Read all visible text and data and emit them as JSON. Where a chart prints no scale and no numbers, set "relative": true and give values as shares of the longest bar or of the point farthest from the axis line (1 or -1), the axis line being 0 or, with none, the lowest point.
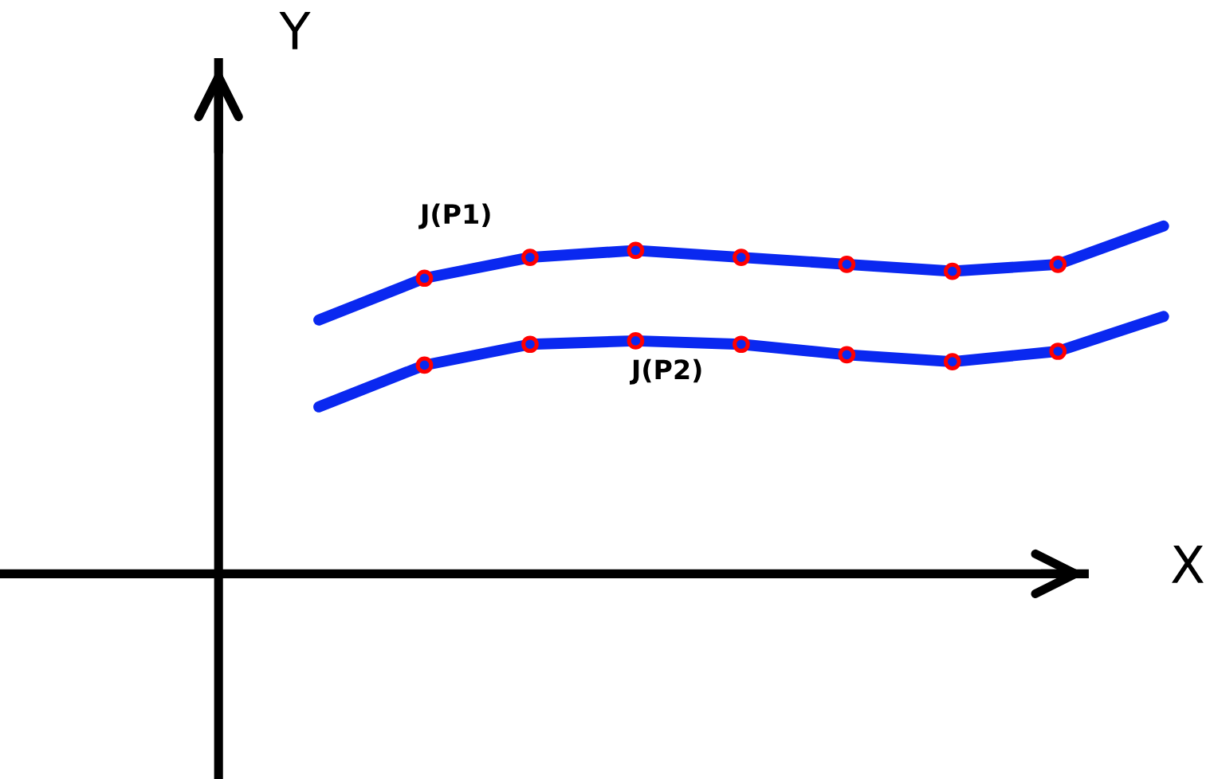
{
  "chart_data": {
    "type": "line",
    "relative": true,
    "xlabel": "X",
    "ylabel": "Y",
    "categories": [
      null,
      null,
      null,
      null,
      null,
      null,
      null,
      null,
      null
    ],
    "series": [
      {
        "color": "#0a28f0",
        "marker": "circle",
        "colors": [
          null,
          "#ff0000",
          "#ff0000",
          "#ff0000",
          "#ff0000",
          "#ff0000",
          "#ff0000",
          "#ff0000",
          null
        ],
        "values": [
          0.73,
          0.85,
          0.91,
          0.93,
          0.91,
          0.89,
          0.87,
          0.89,
          1.0
        ]
      },
      {
        "color": "#0a28f0",
        "marker": "circle",
        "colors": [
          null,
          "#ff0000",
          "#ff0000",
          "#ff0000",
          "#ff0000",
          "#ff0000",
          "#ff0000",
          "#ff0000",
          null
        ],
        "values": [
          0.48,
          0.6,
          0.66,
          0.67,
          0.66,
          0.63,
          0.61,
          0.64,
          0.74
        ]
      }
    ],
    "annotations": [
      "J(P1)",
      "J(P2)"
    ],
    "legend": false,
    "line_style": "solid"
  }
}
